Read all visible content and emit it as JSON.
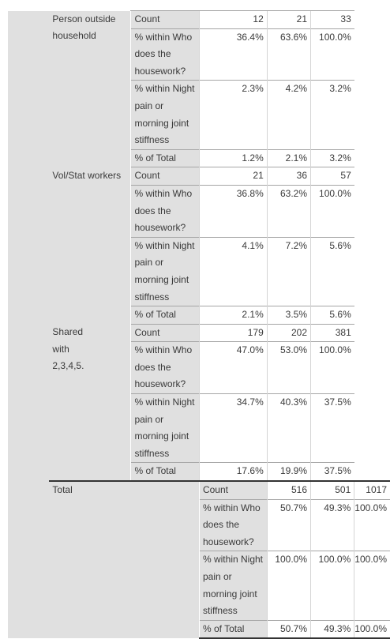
{
  "groups": [
    {
      "label": "Person outside household",
      "rows": [
        {
          "stat": "Count",
          "v1": "12",
          "v2": "21",
          "v3": "33"
        },
        {
          "stat": "% within Who does the housework?",
          "v1": "36.4%",
          "v2": "63.6%",
          "v3": "100.0%"
        },
        {
          "stat": "% within Night pain or morning joint stiffness",
          "v1": "2.3%",
          "v2": "4.2%",
          "v3": "3.2%"
        },
        {
          "stat": "% of Total",
          "v1": "1.2%",
          "v2": "2.1%",
          "v3": "3.2%"
        }
      ]
    },
    {
      "label": "Vol/Stat workers",
      "rows": [
        {
          "stat": "Count",
          "v1": "21",
          "v2": "36",
          "v3": "57"
        },
        {
          "stat": "% within Who does the housework?",
          "v1": "36.8%",
          "v2": "63.2%",
          "v3": "100.0%"
        },
        {
          "stat": "% within Night pain or morning joint stiffness",
          "v1": "4.1%",
          "v2": "7.2%",
          "v3": "5.6%"
        },
        {
          "stat": "% of Total",
          "v1": "2.1%",
          "v2": "3.5%",
          "v3": "5.6%"
        }
      ]
    },
    {
      "label": "Shared with 2,3,4,5.",
      "rows": [
        {
          "stat": "Count",
          "v1": "179",
          "v2": "202",
          "v3": "381"
        },
        {
          "stat": "% within Who does the housework?",
          "v1": "47.0%",
          "v2": "53.0%",
          "v3": "100.0%"
        },
        {
          "stat": "% within Night pain or morning joint stiffness",
          "v1": "34.7%",
          "v2": "40.3%",
          "v3": "37.5%"
        },
        {
          "stat": "% of Total",
          "v1": "17.6%",
          "v2": "19.9%",
          "v3": "37.5%"
        }
      ]
    }
  ],
  "total": {
    "label": "Total",
    "rows": [
      {
        "stat": "Count",
        "v1": "516",
        "v2": "501",
        "v3": "1017"
      },
      {
        "stat": "% within Who does the housework?",
        "v1": "50.7%",
        "v2": "49.3%",
        "v3": "100.0%"
      },
      {
        "stat": "% within Night pain or morning joint stiffness",
        "v1": "100.0%",
        "v2": "100.0%",
        "v3": "100.0%"
      },
      {
        "stat": "% of Total",
        "v1": "50.7%",
        "v2": "49.3%",
        "v3": "100.0%"
      }
    ]
  }
}
